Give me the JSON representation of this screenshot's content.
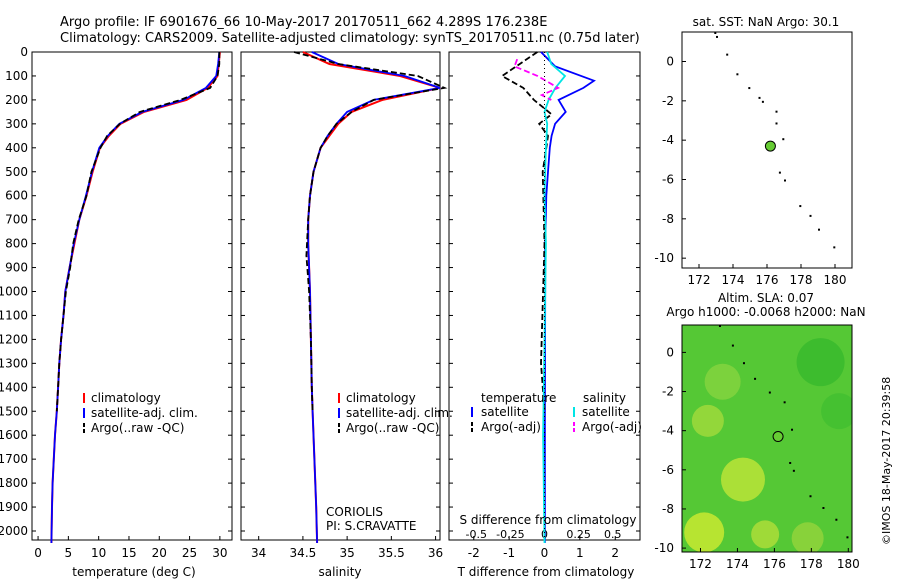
{
  "header": {
    "title_line1": "Argo profile: IF 6901676_66 10-May-2017 20170511_662 4.289S 176.238E",
    "title_line2": "Climatology: CARS2009. Satellite-adjusted climatology: synTS_20170511.nc (0.75d later)"
  },
  "credit": "©IMOS 18-May-2017 20:39:58",
  "colors": {
    "clim": "#ff0000",
    "sat": "#0000ff",
    "argo": "#000000",
    "sal_sat": "#00e5e5",
    "sal_argo": "#ff00ff",
    "green_dot": "#66cc33"
  },
  "depth_ticks": [
    0,
    100,
    200,
    300,
    400,
    500,
    600,
    700,
    800,
    900,
    1000,
    1100,
    1200,
    1300,
    1400,
    1500,
    1600,
    1700,
    1800,
    1900,
    2000
  ],
  "panels": {
    "temperature": {
      "xlabel": "temperature (deg C)",
      "xticks": [
        "0",
        "5",
        "10",
        "15",
        "20",
        "25",
        "30"
      ],
      "legend": [
        "climatology",
        "satellite-adj. clim.",
        "Argo(..raw -QC)"
      ]
    },
    "salinity": {
      "xlabel": "salinity",
      "xticks": [
        "34",
        "34.5",
        "35",
        "35.5",
        "36"
      ],
      "legend": [
        "climatology",
        "satellite-adj. clim.",
        "Argo(..raw -QC)"
      ],
      "note_line1": "CORIOLIS",
      "note_line2": "PI: S.CRAVATTE"
    },
    "difference": {
      "xlabel": "T difference from climatology",
      "xlabel_top": "S difference from climatology",
      "t_ticks": [
        "-2",
        "-1",
        "0",
        "1",
        "2"
      ],
      "s_ticks": [
        "-0.5",
        "-0.25",
        "0",
        "0.25",
        "0.5"
      ],
      "legend_temp_title": "temperature",
      "legend_sal_title": "salinity",
      "legend_temp": [
        "satellite",
        "Argo(-adj)"
      ],
      "legend_sal": [
        "satellite",
        "Argo(-adj)"
      ]
    },
    "sst_map": {
      "title": "sat. SST: NaN Argo: 30.1",
      "xticks": [
        "172",
        "174",
        "176",
        "178",
        "180"
      ],
      "yticks": [
        "0",
        "-2",
        "-4",
        "-6",
        "-8",
        "-10"
      ]
    },
    "sla_map": {
      "title_line1": "Altim. SLA: 0.07",
      "title_line2": "Argo h1000: -0.0068 h2000: NaN",
      "xticks": [
        "172",
        "174",
        "176",
        "178",
        "180"
      ],
      "yticks": [
        "0",
        "-2",
        "-4",
        "-6",
        "-8",
        "-10"
      ]
    }
  },
  "chart_data": [
    {
      "type": "line",
      "title": "",
      "xlabel": "temperature (deg C)",
      "ylabel": "",
      "xlim": [
        -1,
        32
      ],
      "ylim": [
        2050,
        0
      ],
      "y_inverted": true,
      "series": [
        {
          "name": "climatology",
          "x": [
            30,
            29.8,
            29.6,
            28,
            24.5,
            17.5,
            13.6,
            11.7,
            10.2,
            9,
            8,
            6.8,
            6,
            5.2,
            4.5,
            4.2,
            3.8,
            3.5,
            3.3,
            3.1,
            2.8,
            2.6,
            2.4,
            2.3,
            2.2
          ],
          "y": [
            0,
            50,
            100,
            150,
            200,
            250,
            300,
            350,
            400,
            500,
            600,
            700,
            800,
            900,
            1000,
            1100,
            1200,
            1300,
            1400,
            1500,
            1600,
            1700,
            1800,
            1900,
            2050
          ]
        },
        {
          "name": "satellite-adj. clim.",
          "x": [
            29.9,
            29.7,
            29.4,
            27.7,
            24,
            17.2,
            13.4,
            11.5,
            10.1,
            8.9,
            7.9,
            6.8,
            5.9,
            5.2,
            4.5,
            4.2,
            3.8,
            3.5,
            3.3,
            3.1,
            2.8,
            2.6,
            2.4,
            2.3,
            2.2
          ],
          "y": [
            0,
            50,
            100,
            150,
            200,
            250,
            300,
            350,
            400,
            500,
            600,
            700,
            800,
            900,
            1000,
            1100,
            1200,
            1300,
            1400,
            1500,
            1600,
            1700,
            1800,
            1900,
            2050
          ]
        },
        {
          "name": "Argo(..raw -QC)",
          "x": [
            29.9,
            29.9,
            29.6,
            28.4,
            23.5,
            16.8,
            13.5,
            11.4,
            10.3,
            8.8,
            8,
            6.7,
            5.8,
            5.3,
            4.6,
            4.2,
            3.8,
            3.5,
            3.3,
            3.1
          ],
          "y": [
            0,
            50,
            100,
            150,
            200,
            250,
            300,
            350,
            400,
            500,
            600,
            700,
            800,
            900,
            1000,
            1100,
            1200,
            1300,
            1400,
            1500
          ]
        }
      ]
    },
    {
      "type": "line",
      "title": "",
      "xlabel": "salinity",
      "ylabel": "",
      "xlim": [
        33.8,
        36.05
      ],
      "ylim": [
        2050,
        0
      ],
      "y_inverted": true,
      "series": [
        {
          "name": "climatology",
          "x": [
            34.5,
            34.8,
            35.6,
            36.05,
            35.4,
            35.05,
            34.9,
            34.8,
            34.7,
            34.62,
            34.58,
            34.56,
            34.56,
            34.57,
            34.58,
            34.59,
            34.6,
            34.61,
            34.62,
            34.63,
            34.64,
            34.65,
            34.66
          ],
          "y": [
            0,
            50,
            100,
            150,
            200,
            250,
            300,
            350,
            400,
            500,
            600,
            700,
            800,
            900,
            1000,
            1200,
            1400,
            1500,
            1600,
            1700,
            1800,
            1900,
            2050
          ]
        },
        {
          "name": "satellite-adj. clim.",
          "x": [
            34.6,
            34.9,
            35.65,
            36.05,
            35.3,
            35,
            34.88,
            34.78,
            34.7,
            34.62,
            34.58,
            34.56,
            34.56,
            34.57,
            34.58,
            34.59,
            34.6,
            34.61,
            34.62,
            34.63,
            34.64,
            34.65,
            34.66
          ],
          "y": [
            0,
            50,
            100,
            150,
            200,
            250,
            300,
            350,
            400,
            500,
            600,
            700,
            800,
            900,
            1000,
            1200,
            1400,
            1500,
            1600,
            1700,
            1800,
            1900,
            2050
          ]
        },
        {
          "name": "Argo(..raw -QC)",
          "x": [
            34.4,
            34.9,
            35.8,
            36.1,
            35.3,
            35.05,
            34.88,
            34.78,
            34.7,
            34.62,
            34.58,
            34.56,
            34.54,
            34.55,
            34.57,
            34.59,
            34.6,
            34.61
          ],
          "y": [
            0,
            50,
            100,
            150,
            200,
            250,
            300,
            350,
            400,
            500,
            600,
            700,
            850,
            900,
            1000,
            1200,
            1400,
            1500
          ]
        }
      ]
    },
    {
      "type": "line",
      "title": "",
      "xlabel": "T difference from climatology",
      "ylabel": "",
      "xlim": [
        -2.7,
        2.7
      ],
      "ylim": [
        2050,
        0
      ],
      "y_inverted": true,
      "series": [
        {
          "name": "temperature satellite",
          "x": [
            -0.1,
            0.3,
            1.4,
            1.1,
            0.4,
            0.6,
            0.3,
            0.2,
            0.15,
            0.1,
            0.05,
            0.02,
            0.02,
            0.01,
            0.01
          ],
          "y": [
            0,
            60,
            120,
            150,
            200,
            250,
            300,
            350,
            400,
            500,
            600,
            800,
            1000,
            1500,
            2050
          ]
        },
        {
          "name": "temperature Argo(-adj)",
          "x": [
            -0.2,
            -0.8,
            -1.2,
            -0.6,
            -0.3,
            0.2,
            -0.15,
            0.1,
            0.05,
            -0.05,
            0.0,
            -0.1,
            0.0
          ],
          "y": [
            0,
            60,
            100,
            150,
            200,
            260,
            300,
            350,
            400,
            500,
            800,
            1300,
            1500
          ]
        }
      ]
    },
    {
      "type": "line",
      "title": "",
      "xlabel": "S difference from climatology",
      "ylabel": "",
      "xlim": [
        -0.7,
        0.7
      ],
      "ylim": [
        2050,
        0
      ],
      "y_inverted": true,
      "series": [
        {
          "name": "salinity satellite",
          "x": [
            0.02,
            0.05,
            0.15,
            0.08,
            0.03,
            0.0,
            0.02,
            0.01,
            0.0,
            0.01,
            0.0,
            -0.01,
            0.0
          ],
          "y": [
            0,
            50,
            100,
            150,
            200,
            250,
            300,
            400,
            600,
            800,
            1200,
            1600,
            2050
          ]
        },
        {
          "name": "salinity Argo(-adj)",
          "x": [
            -0.2,
            -0.22,
            -0.05,
            0.1,
            -0.02,
            0.05
          ],
          "y": [
            30,
            60,
            100,
            150,
            180,
            200
          ]
        }
      ]
    }
  ],
  "maps": {
    "sst": {
      "xlim": [
        171,
        181
      ],
      "ylim": [
        -10.5,
        1.5
      ],
      "coast_points": [
        [
          172.9,
          1.5
        ],
        [
          173.0,
          1.3
        ],
        [
          173.6,
          0.4
        ],
        [
          174.2,
          -0.6
        ],
        [
          174.9,
          -1.3
        ],
        [
          175.5,
          -1.8
        ],
        [
          175.7,
          -2.0
        ],
        [
          176.5,
          -2.5
        ],
        [
          176.5,
          -3.1
        ],
        [
          176.9,
          -3.9
        ],
        [
          176.7,
          -5.6
        ],
        [
          177.0,
          -6.0
        ],
        [
          177.9,
          -7.3
        ],
        [
          178.5,
          -7.8
        ],
        [
          179.0,
          -8.5
        ],
        [
          179.9,
          -9.4
        ]
      ],
      "argo": [
        176.2,
        -4.3
      ]
    },
    "sla": {
      "xlim": [
        171,
        180.2
      ],
      "ylim": [
        -10.2,
        1.4
      ],
      "coast_points": [
        [
          173.0,
          1.4
        ],
        [
          173.7,
          0.4
        ],
        [
          174.3,
          -0.5
        ],
        [
          174.9,
          -1.3
        ],
        [
          175.7,
          -2.0
        ],
        [
          176.5,
          -2.5
        ],
        [
          176.9,
          -3.9
        ],
        [
          176.8,
          -5.6
        ],
        [
          177.0,
          -6.0
        ],
        [
          177.9,
          -7.3
        ],
        [
          178.6,
          -7.9
        ],
        [
          179.3,
          -8.5
        ],
        [
          179.9,
          -9.4
        ]
      ],
      "argo": [
        176.2,
        -4.3
      ]
    }
  }
}
